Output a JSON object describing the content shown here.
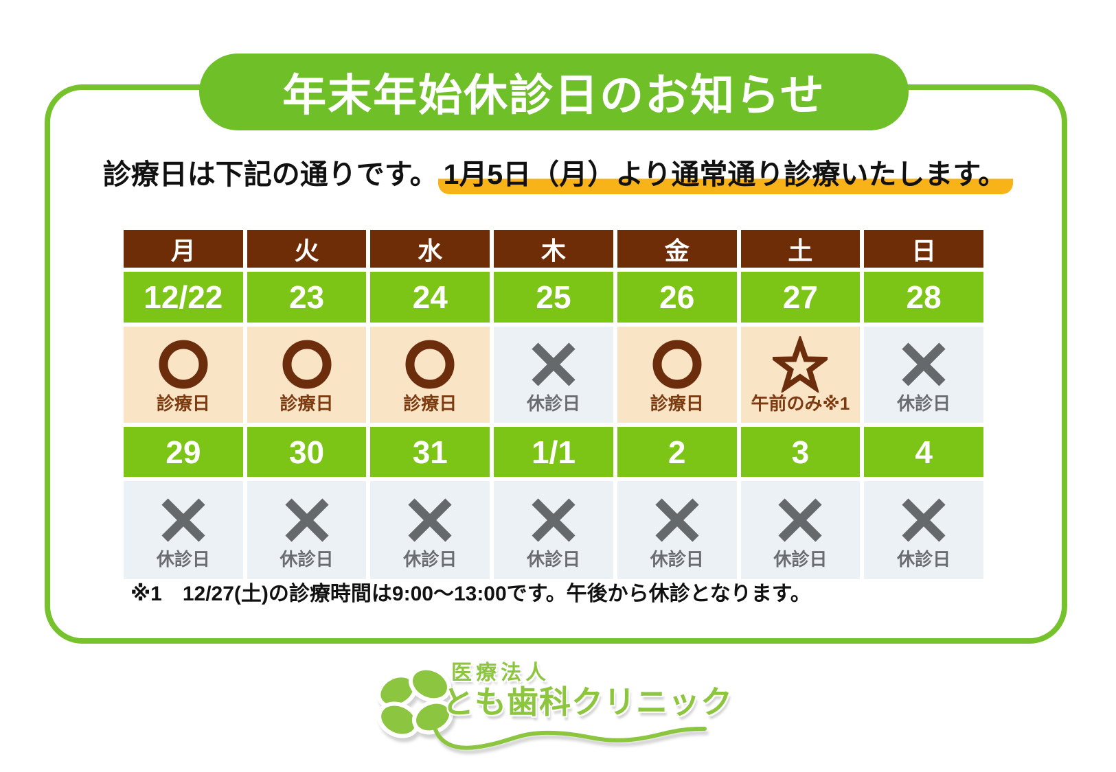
{
  "title": "年末年始休診日のお知らせ",
  "subtitle": {
    "plain": "診療日は下記の通りです。",
    "highlighted": "1月5日（月）より通常通り診療いたします。"
  },
  "calendar": {
    "day_headers": [
      "月",
      "火",
      "水",
      "木",
      "金",
      "土",
      "日"
    ],
    "weeks": [
      {
        "dates": [
          "12/22",
          "23",
          "24",
          "25",
          "26",
          "27",
          "28"
        ],
        "cells": [
          {
            "icon": "circle",
            "label": "診療日",
            "type": "open"
          },
          {
            "icon": "circle",
            "label": "診療日",
            "type": "open"
          },
          {
            "icon": "circle",
            "label": "診療日",
            "type": "open"
          },
          {
            "icon": "cross",
            "label": "休診日",
            "type": "closed"
          },
          {
            "icon": "circle",
            "label": "診療日",
            "type": "open"
          },
          {
            "icon": "star",
            "label": "午前のみ※1",
            "type": "morning"
          },
          {
            "icon": "cross",
            "label": "休診日",
            "type": "closed"
          }
        ]
      },
      {
        "dates": [
          "29",
          "30",
          "31",
          "1/1",
          "2",
          "3",
          "4"
        ],
        "cells": [
          {
            "icon": "cross",
            "label": "休診日",
            "type": "closed"
          },
          {
            "icon": "cross",
            "label": "休診日",
            "type": "closed"
          },
          {
            "icon": "cross",
            "label": "休診日",
            "type": "closed"
          },
          {
            "icon": "cross",
            "label": "休診日",
            "type": "closed"
          },
          {
            "icon": "cross",
            "label": "休診日",
            "type": "closed"
          },
          {
            "icon": "cross",
            "label": "休診日",
            "type": "closed"
          },
          {
            "icon": "cross",
            "label": "休診日",
            "type": "closed"
          }
        ]
      }
    ]
  },
  "footnote": "※1　12/27(土)の診療時間は9:00～13:00です。午後から休診となります。",
  "logo": {
    "corporation": "医療法人",
    "clinic_name": "とも歯科クリニック",
    "clover_icon": "four-leaf-clover"
  },
  "colors": {
    "banner_green": "#6fbf28",
    "border_green": "#76c22d",
    "cell_green": "#7cc415",
    "header_brown": "#6e2d07",
    "open_bg": "#f9e4c5",
    "closed_bg": "#ecf1f5",
    "icon_brown": "#6b2d0c",
    "icon_gray": "#66696c",
    "highlight_yellow": "#f7b318",
    "logo_green": "#8cc63f"
  }
}
